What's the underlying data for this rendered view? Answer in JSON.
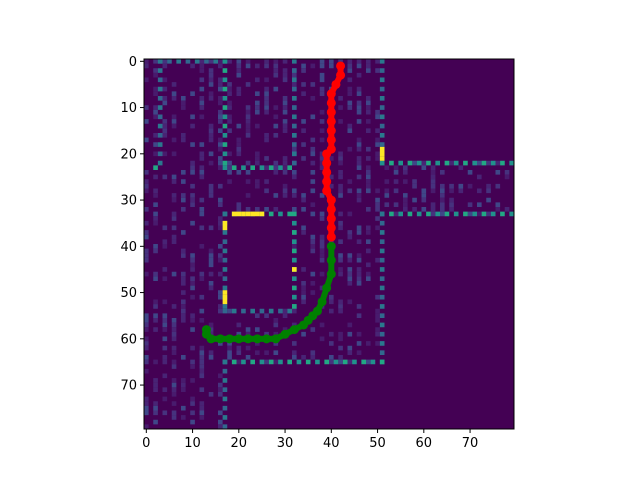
{
  "chart_data": {
    "type": "heatmap",
    "title": "",
    "xlabel": "",
    "ylabel": "",
    "grid_size": [
      80,
      80
    ],
    "xlim": [
      -0.5,
      79.5
    ],
    "ylim": [
      79.5,
      -0.5
    ],
    "xticks": [
      0,
      10,
      20,
      30,
      40,
      50,
      60,
      70
    ],
    "yticks": [
      0,
      10,
      20,
      30,
      40,
      50,
      60,
      70
    ],
    "colormap": "viridis",
    "background_color": "#440154",
    "wall_segments": [
      {
        "from": [
          3,
          0
        ],
        "to": [
          3,
          23
        ]
      },
      {
        "from": [
          2,
          23
        ],
        "to": [
          3,
          23
        ]
      },
      {
        "from": [
          3,
          0
        ],
        "to": [
          17,
          0
        ]
      },
      {
        "from": [
          17,
          0
        ],
        "to": [
          17,
          23
        ]
      },
      {
        "from": [
          17,
          23
        ],
        "to": [
          32,
          23
        ]
      },
      {
        "from": [
          32,
          0
        ],
        "to": [
          32,
          23
        ]
      },
      {
        "from": [
          51,
          0
        ],
        "to": [
          51,
          22
        ]
      },
      {
        "from": [
          51,
          22
        ],
        "to": [
          80,
          22
        ]
      },
      {
        "from": [
          51,
          33
        ],
        "to": [
          80,
          33
        ]
      },
      {
        "from": [
          51,
          33
        ],
        "to": [
          51,
          65
        ]
      },
      {
        "from": [
          17,
          33
        ],
        "to": [
          32,
          33
        ]
      },
      {
        "from": [
          17,
          33
        ],
        "to": [
          17,
          54
        ]
      },
      {
        "from": [
          17,
          54
        ],
        "to": [
          32,
          54
        ]
      },
      {
        "from": [
          32,
          33
        ],
        "to": [
          32,
          54
        ]
      },
      {
        "from": [
          17,
          65
        ],
        "to": [
          51,
          65
        ]
      },
      {
        "from": [
          17,
          65
        ],
        "to": [
          17,
          80
        ]
      }
    ],
    "highlight_cells": [
      [
        19,
        33
      ],
      [
        20,
        33
      ],
      [
        21,
        33
      ],
      [
        22,
        33
      ],
      [
        23,
        33
      ],
      [
        24,
        33
      ],
      [
        25,
        33
      ],
      [
        17,
        35
      ],
      [
        17,
        36
      ],
      [
        17,
        50
      ],
      [
        17,
        51
      ],
      [
        17,
        52
      ],
      [
        51,
        19
      ],
      [
        51,
        20
      ],
      [
        51,
        21
      ],
      [
        32,
        45
      ]
    ],
    "series": [
      {
        "color": "#ff0000",
        "x": [
          42,
          42,
          41,
          40,
          40,
          40,
          40,
          40,
          40,
          40,
          39,
          39,
          39,
          39,
          39,
          40,
          40,
          40,
          40,
          40
        ],
        "y": [
          1,
          3,
          5,
          7,
          9,
          11,
          13,
          15,
          17,
          19,
          20,
          22,
          24,
          26,
          28,
          30,
          32,
          34,
          36,
          38
        ]
      },
      {
        "color": "#008000",
        "x": [
          40,
          40,
          40,
          39,
          38,
          37,
          36,
          35,
          34,
          32,
          30,
          28,
          26,
          24,
          22,
          20,
          18,
          16,
          14,
          13,
          13
        ],
        "y": [
          40,
          43,
          46,
          49,
          52,
          54,
          55,
          56,
          57,
          58,
          59,
          60,
          60,
          60,
          60,
          60,
          60,
          60,
          60,
          59,
          58
        ]
      }
    ]
  }
}
